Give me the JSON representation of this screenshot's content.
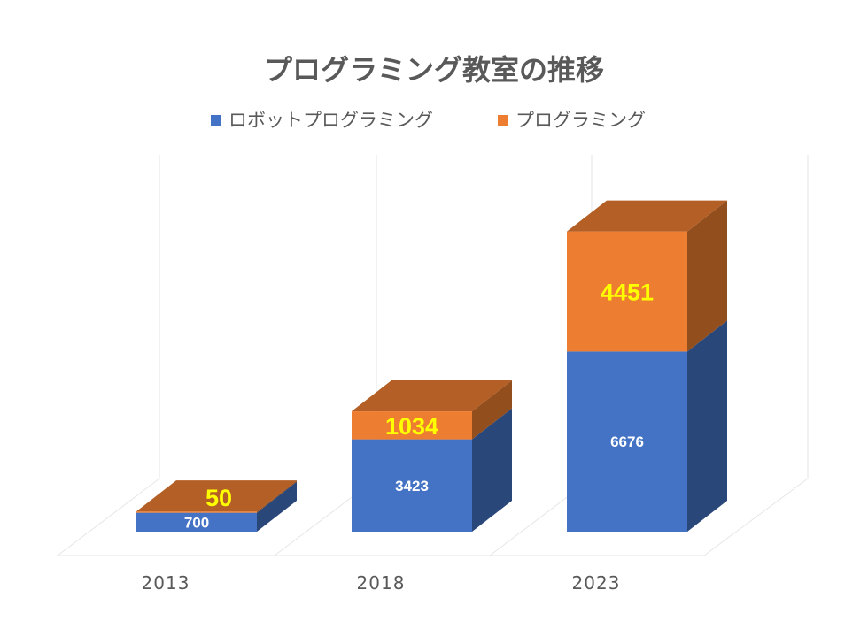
{
  "chart_data": {
    "type": "bar",
    "stacked": true,
    "three_d": true,
    "title": "プログラミング教室の推移",
    "categories": [
      "2013",
      "2018",
      "2023"
    ],
    "series": [
      {
        "name": "ロボットプログラミング",
        "values": [
          700,
          3423,
          6676
        ],
        "color": "#4472c4"
      },
      {
        "name": "プログラミング",
        "values": [
          50,
          1034,
          4451
        ],
        "color": "#ed7d31"
      }
    ],
    "ylim": [
      0,
      12000
    ],
    "legend_position": "top",
    "grid": true,
    "value_label_colors": {
      "ロボットプログラミング": "#ffffff",
      "プログラミング": "#ffff00"
    }
  }
}
